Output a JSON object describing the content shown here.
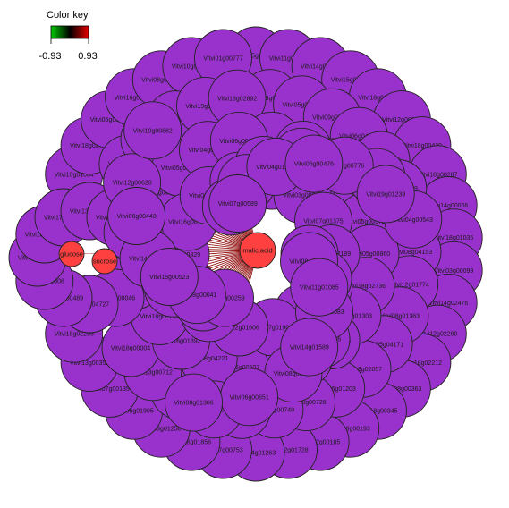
{
  "color_key": {
    "title": "Color key",
    "min_label": "-0.93",
    "max_label": "0.93",
    "colors": {
      "low": "#00c800",
      "mid": "#000000",
      "high": "#e60000"
    }
  },
  "colors": {
    "gene_node": "#9932cc",
    "metabolite_node": "#ff4040",
    "edge": "#8b0000",
    "node_stroke": "#222222"
  },
  "metabolites": [
    {
      "label": "glucose"
    },
    {
      "label": "sucrose"
    },
    {
      "label": "malic.acid"
    }
  ],
  "genes": [
    "Vitvi15g01181",
    "Vitvi11g00139",
    "Vitvi14g00950",
    "Vitvi15g01186",
    "Vitvi18g01019",
    "Vitvi12g00092",
    "Vitvi18g00430",
    "Vitvi18g00287",
    "Vitvi14g00066",
    "Vitvi18g01035",
    "Vitvi03g00099",
    "Vitvi14g02476",
    "Vitvi12g02260",
    "Vitvi18g02212",
    "Vitvi08g00363",
    "Vitvi18g00345",
    "Vitvi18g00193",
    "Vitvi12g00185",
    "Vitvi12g01728",
    "Vitvi14g01263",
    "Vitvi17g00753",
    "Vitvi16g01856",
    "Vitvi08g01258",
    "Vitvi06g01905",
    "Vitvi07g00135",
    "Vitvi13g00352",
    "Vitvi18g02295",
    "Vitvi10g01084",
    "Vitvi18g02478",
    "Vitvi06g00420",
    "Vitvi16g00398",
    "Vitvi08g01777",
    "Vitvi10g01208",
    "Vitvi01g00777",
    "Vitvi18g01585",
    "Vitvi05g00403",
    "Vitvi09g00361",
    "Vitvi06g04497",
    "Vitvi03g01866",
    "Vitvi18g01099",
    "Vitvi12g00594",
    "Vitvi08g04153",
    "Vitvi12g01774",
    "Vitvi08g01363",
    "Vitvi05g04171",
    "Vitvi18g02057",
    "Vitvi06g01203",
    "Vitvi18g00728",
    "Vitvi10g00740",
    "Vitvi18g01571",
    "Vitvi05g01637",
    "Vitvi03g00752",
    "Vitvi13g00712",
    "Vitvi18g00004",
    "Vitvi17g00261",
    "Vitvi18g01215",
    "Vitvi19g00308",
    "Vitvi19g00026",
    "Vitvi18g02892",
    "Vitvi01g01531",
    "Vitvi06g01208",
    "Vitvi05g01724",
    "Vitvi19g00568",
    "Vitvi05g00572",
    "Vitvi05g00860",
    "Vitvi18g02736",
    "Vitvi16g01303",
    "Vitvi16g00474",
    "Vitvi03g00380",
    "Vitvi08g01130",
    "Vitvi16g00507",
    "Vitvi18g04221",
    "Vitvi16g01892",
    "Vitvi18g00713",
    "Vitvi15g00458",
    "Vitvi05g01922",
    "Vitvi04g01700",
    "Vitvi06g00960",
    "Vitvi13g01766",
    "Vitvi03g00805",
    "Vitvi07g01375",
    "Vitvi04g02189",
    "Vitvi01g00214",
    "Vitvi11g01313",
    "Vitvi07g01909",
    "Vitvi12g01606",
    "Vitvi18g01507",
    "Vitvi18g01653",
    "Vitvi10g00829",
    "Vitvi16g00789",
    "Vitvi02g02908",
    "Vitvi18g02825",
    "Vitvi17g00154",
    "Vitvi14g01740",
    "Vitvi14g00046",
    "Vitvi06g04727",
    "Vitvi14g00489",
    "Vitvi06g01808",
    "Vitvi06g01693",
    "Vitvi18g01682",
    "Vitvi17g00267",
    "Vitvi13g01633",
    "Vitvi17g00320",
    "Vitvi13g01544",
    "Vitvi11g01273",
    "Vitvi12g00711",
    "Vitvi08g00891",
    "Vitvi18g00046",
    "Vitvi15g00573",
    "Vitvi01g00140",
    "Vitvi18g01321",
    "Vitvi18g01524",
    "Vitvi15g01191",
    "Vitvi11g00208",
    "Vitvi08g01812",
    "Vitvi08g00035",
    "Vitvi12g00628",
    "Vitvi04g00543",
    "Vitvi09g00259",
    "Vitvi18g00078",
    "Vitvi16g01083",
    "Vitvi14g01281",
    "Vitvi04g00776",
    "Vitvi06g00651",
    "Vitvi10g00882",
    "Vitvi08g01574",
    "Vitvi08g00041",
    "Vitvi04g01183",
    "Vitvi14g01589",
    "Vitvi06g00448",
    "Vitvi19g01239",
    "Vitvi08g01306",
    "Vitvi07g00589",
    "Vitvi11g01085",
    "Vitvi18g00523",
    "Vitvi06g00476"
  ]
}
